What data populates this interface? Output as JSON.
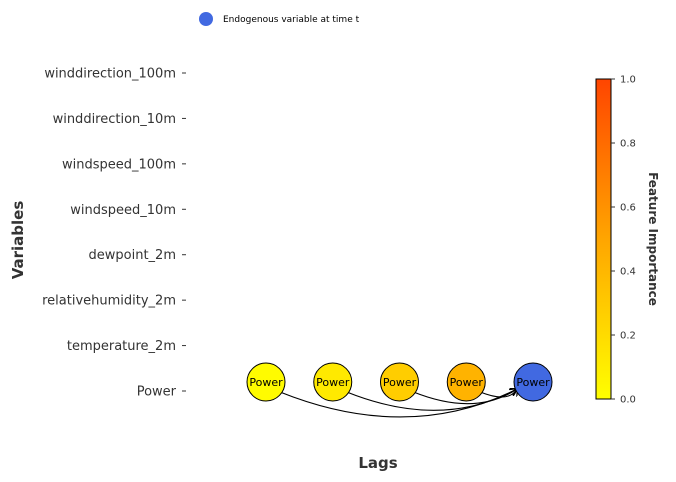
{
  "chart_data": {
    "type": "scatter",
    "legend": {
      "position": "top-left",
      "label": "Endogenous variable at time t",
      "color": "#4169E1"
    },
    "y_label": "Variables",
    "x_label": "Lags",
    "variables": [
      "Power",
      "temperature_2m",
      "relativehumidity_2m",
      "dewpoint_2m",
      "windspeed_10m",
      "windspeed_100m",
      "winddirection_10m",
      "winddirection_100m"
    ],
    "lag_range": [
      -4,
      0
    ],
    "nodes": [
      {
        "label": "Power",
        "variable": "Power",
        "lag": -4,
        "importance": 0.02
      },
      {
        "label": "Power",
        "variable": "Power",
        "lag": -3,
        "importance": 0.12
      },
      {
        "label": "Power",
        "variable": "Power",
        "lag": -2,
        "importance": 0.28
      },
      {
        "label": "Power",
        "variable": "Power",
        "lag": -1,
        "importance": 0.42
      },
      {
        "label": "Power",
        "variable": "Power",
        "lag": 0,
        "endogenous": true
      }
    ],
    "edges": [
      {
        "from_lag": -4,
        "to_lag": 0
      },
      {
        "from_lag": -3,
        "to_lag": 0
      },
      {
        "from_lag": -2,
        "to_lag": 0
      },
      {
        "from_lag": -1,
        "to_lag": 0
      }
    ],
    "colorbar": {
      "title": "Feature Importance",
      "range": [
        0,
        1
      ],
      "ticks": [
        "0.0",
        "0.2",
        "0.4",
        "0.6",
        "0.8",
        "1.0"
      ],
      "colors": [
        "#FFFF00",
        "#FFA500",
        "#FF4500"
      ]
    },
    "grid": false
  }
}
